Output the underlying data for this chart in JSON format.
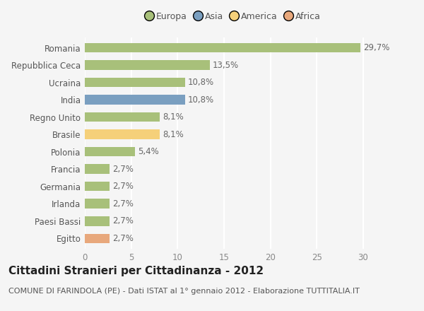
{
  "categories": [
    "Egitto",
    "Paesi Bassi",
    "Irlanda",
    "Germania",
    "Francia",
    "Polonia",
    "Brasile",
    "Regno Unito",
    "India",
    "Ucraina",
    "Repubblica Ceca",
    "Romania"
  ],
  "values": [
    2.7,
    2.7,
    2.7,
    2.7,
    2.7,
    5.4,
    8.1,
    8.1,
    10.8,
    10.8,
    13.5,
    29.7
  ],
  "labels": [
    "2,7%",
    "2,7%",
    "2,7%",
    "2,7%",
    "2,7%",
    "5,4%",
    "8,1%",
    "8,1%",
    "10,8%",
    "10,8%",
    "13,5%",
    "29,7%"
  ],
  "colors": [
    "#e8a87c",
    "#a8c07a",
    "#a8c07a",
    "#a8c07a",
    "#a8c07a",
    "#a8c07a",
    "#f5d07a",
    "#a8c07a",
    "#7a9fc0",
    "#a8c07a",
    "#a8c07a",
    "#a8c07a"
  ],
  "legend_labels": [
    "Europa",
    "Asia",
    "America",
    "Africa"
  ],
  "legend_colors": [
    "#a8c07a",
    "#7a9fc0",
    "#f5d07a",
    "#e8a87c"
  ],
  "title": "Cittadini Stranieri per Cittadinanza - 2012",
  "subtitle": "COMUNE DI FARINDOLA (PE) - Dati ISTAT al 1° gennaio 2012 - Elaborazione TUTTITALIA.IT",
  "xlim": [
    0,
    32
  ],
  "xticks": [
    0,
    5,
    10,
    15,
    20,
    25,
    30
  ],
  "background_color": "#f5f5f5",
  "grid_color": "#ffffff",
  "bar_height": 0.55,
  "label_fontsize": 8.5,
  "tick_fontsize": 8.5,
  "title_fontsize": 11,
  "subtitle_fontsize": 8
}
